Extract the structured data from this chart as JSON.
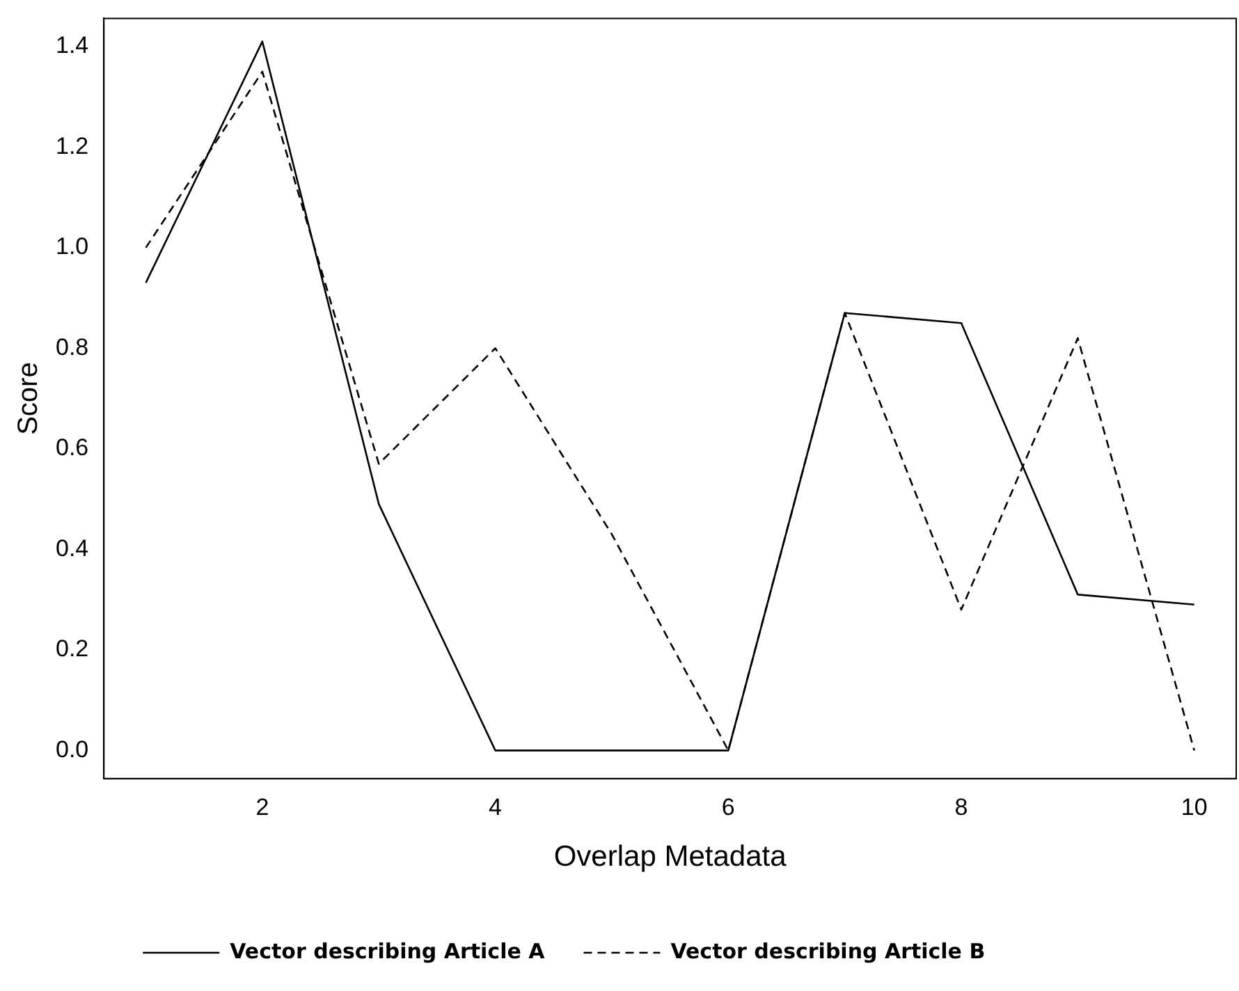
{
  "chart_data": {
    "type": "line",
    "xlabel": "Overlap Metadata",
    "ylabel": "Score",
    "x": [
      1,
      2,
      3,
      4,
      5,
      6,
      7,
      8,
      9,
      10
    ],
    "series": [
      {
        "name": "Vector describing Article A",
        "color": "#000000",
        "line_style": "solid",
        "values": [
          0.93,
          1.41,
          0.49,
          0,
          0,
          0,
          0.87,
          0.85,
          0.31,
          0.29
        ]
      },
      {
        "name": "Vector describing Article B",
        "color": "#000000",
        "line_style": "dashed",
        "values": [
          1.0,
          1.35,
          0.57,
          0.8,
          0.43,
          0,
          0.87,
          0.28,
          0.82,
          0
        ]
      }
    ],
    "xlim": [
      0.64,
      10.36
    ],
    "xticks": [
      2,
      4,
      6,
      8,
      10
    ],
    "ylim": [
      -0.056,
      1.456
    ],
    "yticks": [
      {
        "value": 0,
        "label": "0.0"
      },
      {
        "value": 0.2,
        "label": "0.2"
      },
      {
        "value": 0.4,
        "label": "0.4"
      },
      {
        "value": 0.6,
        "label": "0.6"
      },
      {
        "value": 0.8,
        "label": "0.8"
      },
      {
        "value": 1,
        "label": "1.0"
      },
      {
        "value": 1.2,
        "label": "1.2"
      },
      {
        "value": 1.4,
        "label": "1.4"
      }
    ],
    "grid": false,
    "marker": "none",
    "legend": "bottom left"
  }
}
